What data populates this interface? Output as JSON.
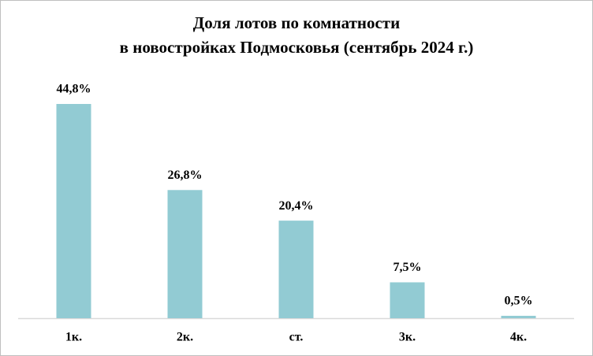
{
  "chart_data": {
    "type": "bar",
    "title": [
      "Доля лотов по комнатности",
      "в новостройках Подмосковья (сентябрь 2024 г.)"
    ],
    "categories": [
      "1к.",
      "2к.",
      "ст.",
      "3к.",
      "4к."
    ],
    "values": [
      44.8,
      26.8,
      20.4,
      7.5,
      0.5
    ],
    "value_labels": [
      "44,8%",
      "26,8%",
      "20,4%",
      "7,5%",
      "0,5%"
    ],
    "color": "#92cbd3"
  }
}
